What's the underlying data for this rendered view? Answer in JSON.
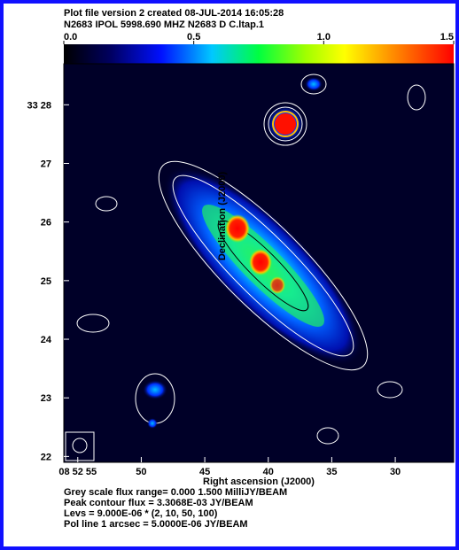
{
  "chart_data": {
    "type": "image",
    "title": "Plot file version 2  created 08-JUL-2014 16:05:28",
    "subtitle": "N2683  IPOL  5998.690 MHZ  N2683 D C.ltap.1",
    "xlabel": "Right ascension (J2000)",
    "ylabel": "Declination (J2000)",
    "xlim": [
      56.1,
      25.4
    ],
    "xticks": [
      {
        "value": 55,
        "label": "08 52 55"
      },
      50,
      45,
      40,
      35,
      30
    ],
    "ylim": [
      21.9,
      28.7
    ],
    "yticks": [
      {
        "value": 28,
        "label": "33 28"
      },
      27,
      26,
      25,
      24,
      23,
      22
    ],
    "colorbar": {
      "lim": [
        0,
        1.5
      ],
      "ticks": [
        {
          "value": 0,
          "label": "0.0"
        },
        0.5,
        {
          "value": 1,
          "label": "1.0"
        },
        1.5
      ]
    },
    "annotations": [
      "Grey scale flux range= 0.000 1.500 MilliJY/BEAM",
      "Peak contour flux =  3.3068E-03 JY/BEAM",
      "Levs = 9.000E-06 * (2, 10, 50, 100)",
      "Pol line 1 arcsec =  5.0000E-06 JY/BEAM"
    ]
  }
}
